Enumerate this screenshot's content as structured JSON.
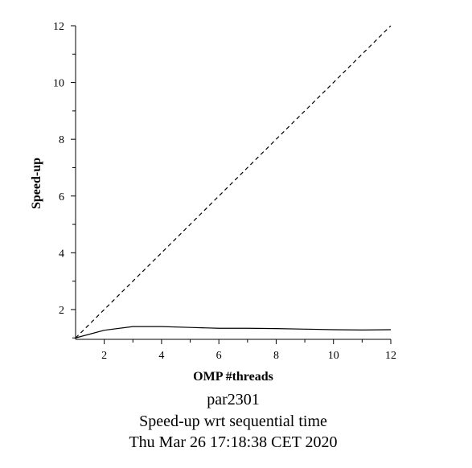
{
  "chart_data": {
    "type": "line",
    "xlabel": "OMP #threads",
    "ylabel": "Speed-up",
    "xlim": [
      1,
      12
    ],
    "ylim": [
      0.95,
      12
    ],
    "xticks": [
      2,
      4,
      6,
      8,
      10,
      12
    ],
    "yticks": [
      2,
      4,
      6,
      8,
      10,
      12
    ],
    "grid": false,
    "series": [
      {
        "style": "solid",
        "x": [
          1,
          2,
          3,
          4,
          5,
          6,
          7,
          8,
          9,
          10,
          11,
          12
        ],
        "y": [
          1.0,
          1.27,
          1.4,
          1.4,
          1.37,
          1.34,
          1.34,
          1.33,
          1.31,
          1.29,
          1.28,
          1.29
        ]
      },
      {
        "style": "dashed",
        "x": [
          1,
          12
        ],
        "y": [
          1,
          12
        ]
      }
    ],
    "captions": [
      "par2301",
      "Speed-up wrt sequential time",
      "Thu Mar 26 17:18:38 CET 2020"
    ]
  }
}
